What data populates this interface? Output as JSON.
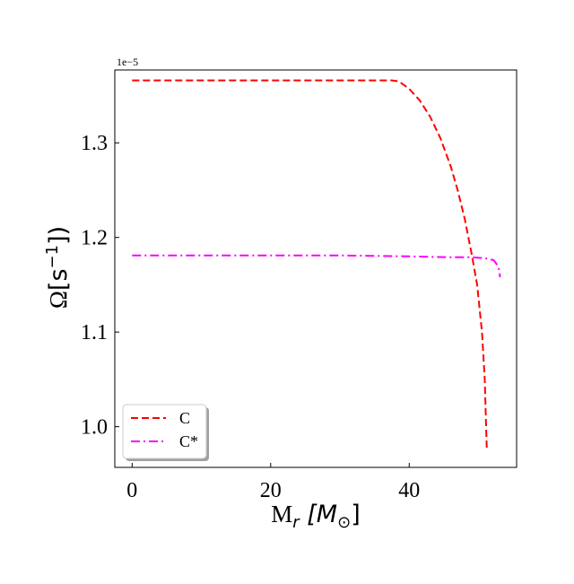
{
  "chart_data": {
    "type": "line",
    "offset_text": "1e−5",
    "scale_exponent": -5,
    "ylabel_symbol": "Ω",
    "ylabel_unit": "[s",
    "ylabel_exp": "−1",
    "ylabel_close": "])",
    "xlabel_main": "M",
    "xlabel_sub": "r",
    "xlabel_unit_open": " [M",
    "xlabel_unit_sub": "⊙",
    "xlabel_unit_close": "]",
    "xlim": [
      -2.5,
      55.5
    ],
    "ylim": [
      0.957,
      1.377
    ],
    "xticks": [
      {
        "value": 0,
        "label": "0"
      },
      {
        "value": 20,
        "label": "20"
      },
      {
        "value": 40,
        "label": "40"
      }
    ],
    "yticks": [
      {
        "value": 1.0,
        "label": "1.0"
      },
      {
        "value": 1.1,
        "label": "1.1"
      },
      {
        "value": 1.2,
        "label": "1.2"
      },
      {
        "value": 1.3,
        "label": "1.3"
      }
    ],
    "grid": false,
    "legend_position": "lower-left",
    "series": [
      {
        "name": "C",
        "color": "#ff0000",
        "dash": "dashed",
        "points": [
          [
            0,
            1.366
          ],
          [
            10,
            1.366
          ],
          [
            20,
            1.366
          ],
          [
            30,
            1.366
          ],
          [
            37.5,
            1.366
          ],
          [
            38.5,
            1.365
          ],
          [
            40,
            1.357
          ],
          [
            41.5,
            1.345
          ],
          [
            43,
            1.328
          ],
          [
            44.5,
            1.305
          ],
          [
            46,
            1.275
          ],
          [
            47,
            1.25
          ],
          [
            48,
            1.22
          ],
          [
            49,
            1.183
          ],
          [
            49.8,
            1.15
          ],
          [
            50.5,
            1.1
          ],
          [
            50.9,
            1.05
          ],
          [
            51.1,
            1.0
          ],
          [
            51.2,
            0.975
          ]
        ]
      },
      {
        "name": "C*",
        "color": "#ff00ff",
        "dash": "dashdot",
        "points": [
          [
            0,
            1.181
          ],
          [
            10,
            1.181
          ],
          [
            20,
            1.181
          ],
          [
            30,
            1.181
          ],
          [
            40,
            1.18
          ],
          [
            46,
            1.179
          ],
          [
            49,
            1.179
          ],
          [
            51,
            1.178
          ],
          [
            52.2,
            1.176
          ],
          [
            52.8,
            1.17
          ],
          [
            53,
            1.165
          ],
          [
            53.1,
            1.158
          ]
        ]
      }
    ]
  }
}
